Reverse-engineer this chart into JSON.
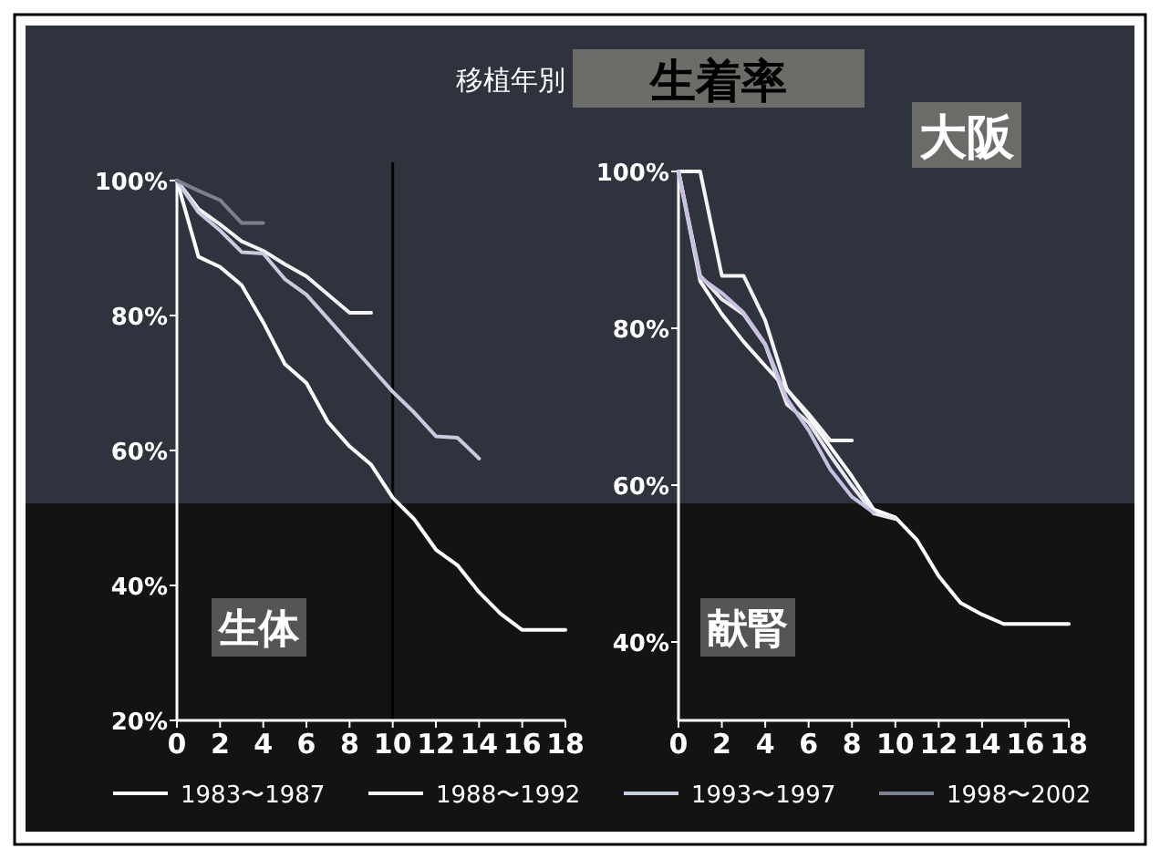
{
  "chart_data": [
    {
      "type": "other",
      "subtitle": "移植年別",
      "title": "生着率"
    },
    {
      "type": "line",
      "annotations": [
        "生体"
      ],
      "xlim": [
        0,
        18
      ],
      "ylim": [
        20,
        100
      ],
      "xticks": [
        0,
        2,
        4,
        6,
        8,
        10,
        12,
        14,
        16,
        18
      ],
      "yticks": [
        {
          "value": 20,
          "label": "20%"
        },
        {
          "value": 40,
          "label": "40%"
        },
        {
          "value": 60,
          "label": "60%"
        },
        {
          "value": 80,
          "label": "80%"
        },
        {
          "value": 100,
          "label": "100%"
        }
      ],
      "legend": "bottom",
      "ref_lines": [
        {
          "axis": "x",
          "value": 10,
          "color": "#000000"
        }
      ],
      "series": [
        {
          "name": "1983〜1987",
          "color": "#ffffff",
          "x": [
            0,
            1,
            2,
            3,
            4,
            5,
            6,
            7,
            8,
            9,
            10,
            11,
            12,
            13,
            14,
            15,
            16,
            18
          ],
          "values": [
            100,
            88.7,
            87.2,
            84.5,
            79,
            72.8,
            70,
            64.2,
            60.6,
            57.9,
            53,
            49.8,
            45.3,
            43,
            39,
            35.8,
            33.4,
            33.4
          ]
        },
        {
          "name": "1988〜1992",
          "color": "#f4f4f4",
          "x": [
            0,
            1,
            2,
            3,
            4,
            5,
            6,
            7,
            8,
            9
          ],
          "values": [
            100,
            95.8,
            93.5,
            91,
            89.6,
            87.6,
            85.8,
            83.1,
            80.4,
            80.4
          ]
        },
        {
          "name": "1993〜1997",
          "color": "#c8cce0",
          "x": [
            0,
            1,
            2,
            3,
            4,
            5,
            6,
            7,
            8,
            9,
            10,
            11,
            12,
            13,
            14
          ],
          "values": [
            100,
            95.3,
            92.6,
            89.4,
            89.2,
            85.4,
            83.1,
            79.5,
            75.9,
            72.3,
            68.7,
            65.6,
            62.1,
            61.9,
            58.8
          ]
        },
        {
          "name": "1998〜2002",
          "color": "#7c8090",
          "x": [
            0,
            1,
            2,
            3,
            4
          ],
          "values": [
            100,
            98.5,
            97.1,
            93.7,
            93.7
          ]
        }
      ]
    },
    {
      "type": "line",
      "annotations": [
        "献腎",
        "大阪"
      ],
      "xlim": [
        0,
        18
      ],
      "ylim": [
        30,
        100
      ],
      "xticks": [
        0,
        2,
        4,
        6,
        8,
        10,
        12,
        14,
        16,
        18
      ],
      "yticks": [
        {
          "value": 40,
          "label": "40%"
        },
        {
          "value": 60,
          "label": "60%"
        },
        {
          "value": 80,
          "label": "80%"
        },
        {
          "value": 100,
          "label": "100%"
        }
      ],
      "series": [
        {
          "color": "#ffffff",
          "x": [
            0,
            1,
            2,
            3,
            4,
            5,
            6,
            7,
            8,
            9,
            10,
            11,
            12,
            13,
            14,
            15,
            18
          ],
          "values": [
            100,
            86,
            81.8,
            78.3,
            75.2,
            72.2,
            68.7,
            64.9,
            61.1,
            56.9,
            55.9,
            53,
            48.4,
            45,
            43.5,
            42.3,
            42.3
          ]
        },
        {
          "color": "#f4f4f4",
          "x": [
            0,
            1,
            2,
            3,
            4,
            5,
            6,
            7,
            8
          ],
          "values": [
            100,
            100,
            86.7,
            86.7,
            81,
            72.2,
            69.1,
            65.7,
            65.7
          ]
        },
        {
          "color": "#e8e8f0",
          "x": [
            0,
            1,
            2,
            3,
            4,
            5,
            6,
            7,
            8,
            9,
            10
          ],
          "values": [
            100,
            86.7,
            83.7,
            81.8,
            77.9,
            70.3,
            68,
            63.8,
            59.9,
            56.4,
            55.7
          ]
        },
        {
          "color": "#c8c0e0",
          "x": [
            0,
            1,
            2,
            3,
            4,
            5,
            6,
            7,
            8,
            9
          ],
          "values": [
            100,
            86.5,
            84.5,
            82,
            78,
            71,
            67,
            62,
            58.5,
            56.5
          ]
        }
      ]
    }
  ]
}
